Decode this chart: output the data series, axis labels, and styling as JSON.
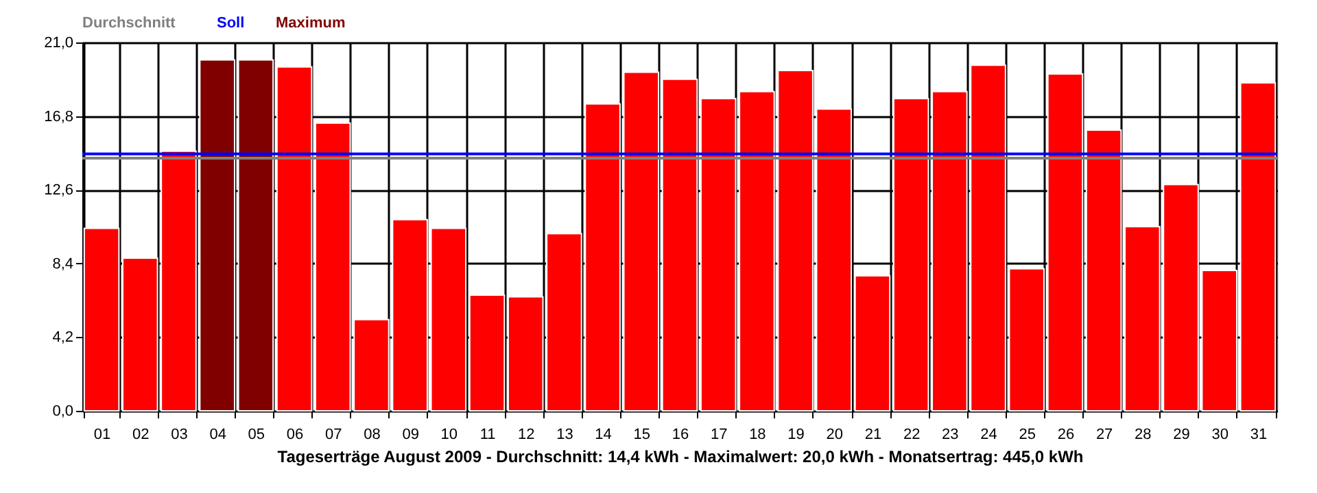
{
  "chart_data": {
    "type": "bar",
    "xlabel": "Tageserträge August 2009 - Durchschnitt: 14,4 kWh - Maximalwert: 20,0 kWh - Monatsertrag: 445,0 kWh",
    "categories": [
      "01",
      "02",
      "03",
      "04",
      "05",
      "06",
      "07",
      "08",
      "09",
      "10",
      "11",
      "12",
      "13",
      "14",
      "15",
      "16",
      "17",
      "18",
      "19",
      "20",
      "21",
      "22",
      "23",
      "24",
      "25",
      "26",
      "27",
      "28",
      "29",
      "30",
      "31"
    ],
    "series": [
      {
        "color": "#ff0000",
        "values": [
          10.4,
          8.7,
          14.8,
          null,
          null,
          19.6,
          16.4,
          5.2,
          10.9,
          10.4,
          6.6,
          6.5,
          10.1,
          17.5,
          19.3,
          18.9,
          17.8,
          18.2,
          19.4,
          17.2,
          7.7,
          17.8,
          18.2,
          19.7,
          8.1,
          19.2,
          16.0,
          10.5,
          12.9,
          8.0,
          18.7
        ]
      },
      {
        "name": "Maximum",
        "color": "#800000",
        "values": [
          null,
          null,
          null,
          20.0,
          20.0,
          null,
          null,
          null,
          null,
          null,
          null,
          null,
          null,
          null,
          null,
          null,
          null,
          null,
          null,
          null,
          null,
          null,
          null,
          null,
          null,
          null,
          null,
          null,
          null,
          null,
          null
        ]
      }
    ],
    "ref_lines": [
      {
        "axis": "y",
        "value": 14.4,
        "label": "Durchschnitt",
        "color": "#808080"
      },
      {
        "axis": "y",
        "value": 14.65,
        "label": "Soll",
        "color": "#0000ff"
      }
    ],
    "ylim": [
      0,
      21
    ],
    "yticks": [
      {
        "value": 0,
        "label": "0,0"
      },
      {
        "value": 4.2,
        "label": "4,2"
      },
      {
        "value": 8.4,
        "label": "8,4"
      },
      {
        "value": 12.6,
        "label": "12,6"
      },
      {
        "value": 16.8,
        "label": "16,8"
      },
      {
        "value": 21,
        "label": "21,0"
      }
    ],
    "grid": true,
    "legend": "top left"
  }
}
